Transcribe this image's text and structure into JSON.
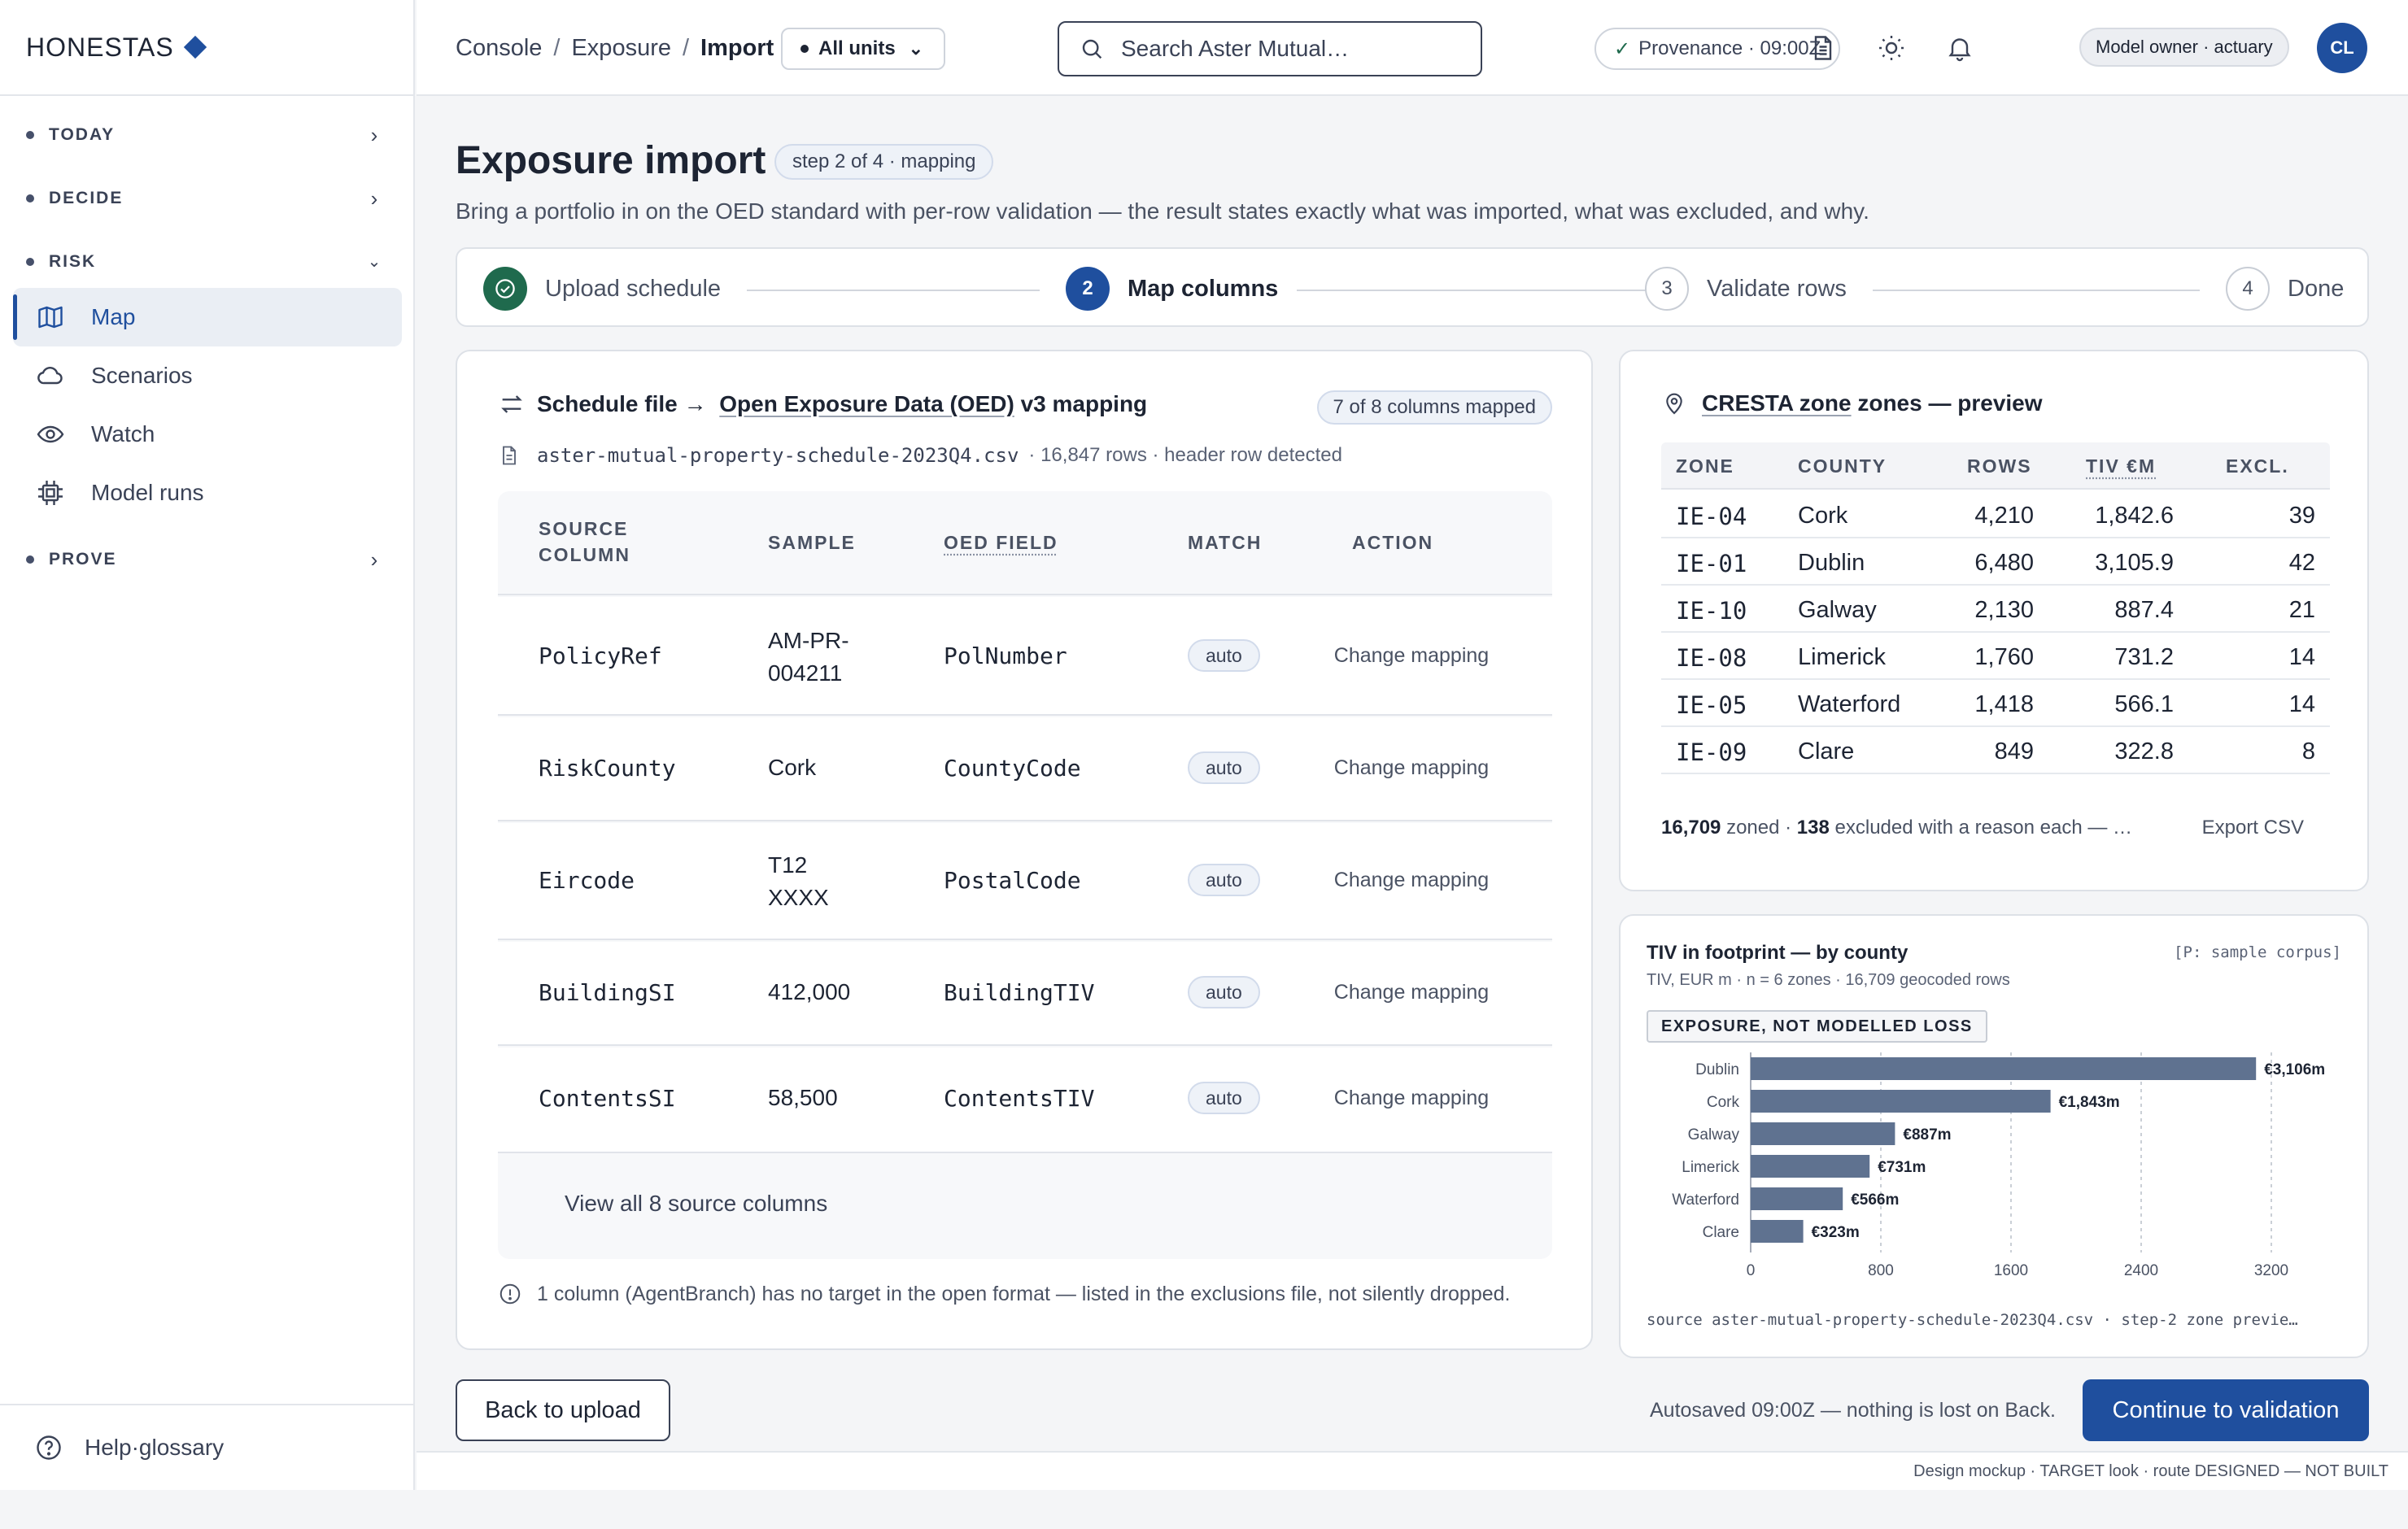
{
  "brand": {
    "name": "HONESTAS"
  },
  "sidebar": {
    "sections": [
      {
        "label": "TODAY"
      },
      {
        "label": "DECIDE"
      },
      {
        "label": "RISK"
      },
      {
        "label": "PROVE"
      }
    ],
    "items": [
      {
        "label": "Map",
        "icon": "map-icon",
        "active": true
      },
      {
        "label": "Scenarios",
        "icon": "cloud-icon"
      },
      {
        "label": "Watch",
        "icon": "eye-icon"
      },
      {
        "label": "Model runs",
        "icon": "chip-icon"
      }
    ],
    "footer": {
      "label": "Help·glossary",
      "icon": "help-icon"
    }
  },
  "topbar": {
    "breadcrumb": [
      "Console",
      "Exposure",
      "Import"
    ],
    "unit_select": "All units",
    "search_placeholder": "Search Aster Mutual…",
    "provenance": "Provenance · 09:00Z",
    "role": "Model owner · actuary",
    "avatar": "CL"
  },
  "page": {
    "title": "Exposure import",
    "step_pill": "step 2 of 4 · mapping",
    "subtitle": "Bring a portfolio in on the OED standard with per-row validation — the result states exactly what was imported, what was excluded, and why."
  },
  "stepper": [
    {
      "number": "",
      "label": "Upload schedule",
      "state": "done"
    },
    {
      "number": "2",
      "label": "Map columns",
      "state": "current"
    },
    {
      "number": "3",
      "label": "Validate rows",
      "state": "todo"
    },
    {
      "number": "4",
      "label": "Done",
      "state": "todo"
    }
  ],
  "mapping": {
    "title_prefix": "Schedule file → ",
    "title_link": "Open Exposure Data (OED)",
    "title_suffix": " v3 mapping",
    "mapped_pill": "7 of 8 columns mapped",
    "file_name": "aster-mutual-property-schedule-2023Q4.csv",
    "file_meta": "· 16,847 rows · header row detected",
    "columns": {
      "source": "SOURCE COLUMN",
      "sample": "SAMPLE",
      "field": "OED FIELD",
      "match": "MATCH",
      "action": "ACTION"
    },
    "rows": [
      {
        "source": "PolicyRef",
        "sample": "AM-PR-004211",
        "field": "PolNumber",
        "match": "auto",
        "action": "Change mapping"
      },
      {
        "source": "RiskCounty",
        "sample": "Cork",
        "field": "CountyCode",
        "match": "auto",
        "action": "Change mapping"
      },
      {
        "source": "Eircode",
        "sample": "T12 XXXX",
        "field": "PostalCode",
        "match": "auto",
        "action": "Change mapping"
      },
      {
        "source": "BuildingSI",
        "sample": "412,000",
        "field": "BuildingTIV",
        "match": "auto",
        "action": "Change mapping"
      },
      {
        "source": "ContentsSI",
        "sample": "58,500",
        "field": "ContentsTIV",
        "match": "auto",
        "action": "Change mapping"
      }
    ],
    "view_all": "View all 8 source columns",
    "exclusion_note": "1 column (AgentBranch) has no target in the open format — listed in the exclusions file, not silently dropped."
  },
  "zones": {
    "title_link": "CRESTA zone",
    "title_suffix": " zones — preview",
    "columns": {
      "zone": "ZONE",
      "county": "COUNTY",
      "rows": "ROWS",
      "tiv": "TIV €M",
      "excl": "EXCL."
    },
    "rows": [
      {
        "zone": "IE-04",
        "county": "Cork",
        "rows": "4,210",
        "tiv": "1,842.6",
        "excl": "39"
      },
      {
        "zone": "IE-01",
        "county": "Dublin",
        "rows": "6,480",
        "tiv": "3,105.9",
        "excl": "42"
      },
      {
        "zone": "IE-10",
        "county": "Galway",
        "rows": "2,130",
        "tiv": "887.4",
        "excl": "21"
      },
      {
        "zone": "IE-08",
        "county": "Limerick",
        "rows": "1,760",
        "tiv": "731.2",
        "excl": "14"
      },
      {
        "zone": "IE-05",
        "county": "Waterford",
        "rows": "1,418",
        "tiv": "566.1",
        "excl": "14"
      },
      {
        "zone": "IE-09",
        "county": "Clare",
        "rows": "849",
        "tiv": "322.8",
        "excl": "8"
      }
    ],
    "foot_zoned": "16,709",
    "foot_zoned_label": " zoned · ",
    "foot_excluded": "138",
    "foot_excluded_label": " excluded with a reason each — …",
    "export": "Export CSV"
  },
  "chart": {
    "title": "TIV in footprint — by county",
    "subtitle": "TIV, EUR m · n = 6 zones · 16,709 geocoded rows",
    "tag": "[P: sample corpus]",
    "badge": "EXPOSURE, NOT MODELLED LOSS",
    "source": "source aster-mutual-property-schedule-2023Q4.csv · step-2 zone previe…",
    "bar_color": "#5f7290"
  },
  "chart_data": {
    "type": "bar",
    "orientation": "horizontal",
    "categories": [
      "Dublin",
      "Cork",
      "Galway",
      "Limerick",
      "Waterford",
      "Clare"
    ],
    "values": [
      3106,
      1843,
      887,
      731,
      566,
      323
    ],
    "data_labels": [
      "€3,106m",
      "€1,843m",
      "€887m",
      "€731m",
      "€566m",
      "€323m"
    ],
    "xlim": [
      0,
      3200
    ],
    "xticks": [
      0,
      800,
      1600,
      2400,
      3200
    ],
    "grid": true,
    "title": "TIV in footprint — by county",
    "xlabel": "",
    "ylabel": ""
  },
  "actions": {
    "back": "Back to upload",
    "autosave": "Autosaved 09:00Z — nothing is lost on Back.",
    "continue": "Continue to validation"
  },
  "footnote": "Design mockup · TARGET look · route DESIGNED — NOT BUILT",
  "colors": {
    "accent": "#1f4f9e",
    "success": "#1f6a4d"
  }
}
